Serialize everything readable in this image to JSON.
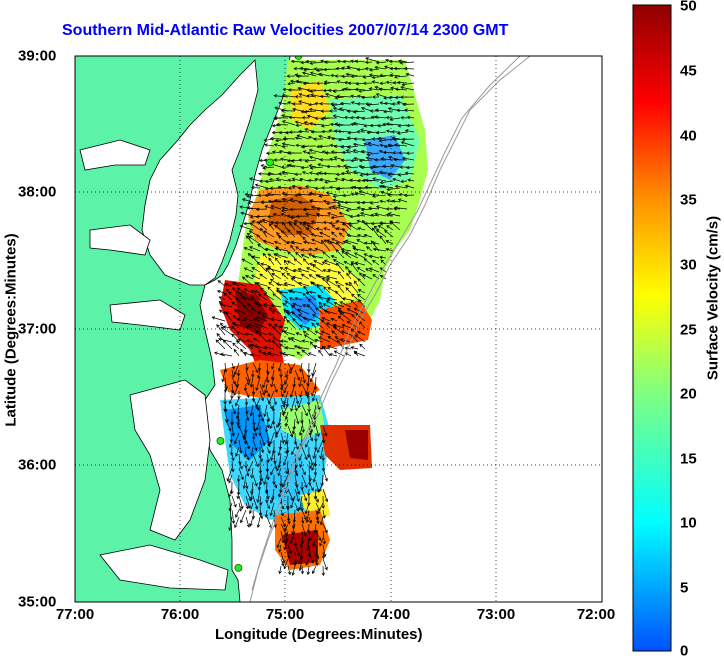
{
  "title": "Southern Mid-Atlantic Raw Velocities 2007/07/14 2300 GMT",
  "xaxis": {
    "label": "Longitude (Degrees:Minutes)",
    "ticks": [
      "77:00",
      "76:00",
      "75:00",
      "74:00",
      "73:00",
      "72:00"
    ]
  },
  "yaxis": {
    "label": "Latitude (Degrees:Minutes)",
    "ticks": [
      "39:00",
      "38:00",
      "37:00",
      "36:00",
      "35:00"
    ]
  },
  "colorbar": {
    "label": "Surface Velocity (cm/s)",
    "ticks": [
      "50",
      "45",
      "40",
      "35",
      "30",
      "25",
      "20",
      "15",
      "10",
      "5",
      "0"
    ],
    "min": 0,
    "max": 50
  },
  "map": {
    "lon_range": [
      -77,
      -72
    ],
    "lat_range": [
      35,
      39
    ],
    "land_color": "#5cf2a8",
    "grid": "dotted",
    "radar_sites": [
      {
        "lon": -74.88,
        "lat": 39.0
      },
      {
        "lon": -75.15,
        "lat": 38.22
      },
      {
        "lon": -75.62,
        "lat": 36.18
      },
      {
        "lon": -75.45,
        "lat": 35.25
      }
    ]
  }
}
